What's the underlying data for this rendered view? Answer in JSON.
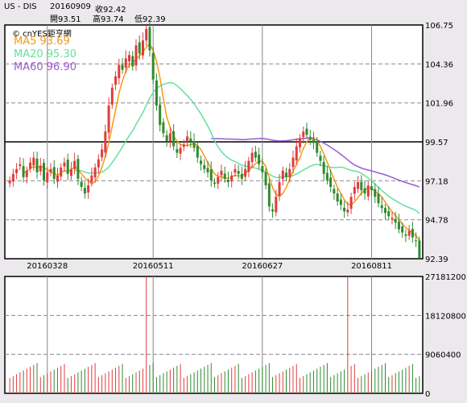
{
  "header": {
    "symbol": "US - DIS",
    "date": "20160909",
    "close_label": "收92.42",
    "open_label": "開93.51",
    "high_label": "高93.74",
    "low_label": "低92.39"
  },
  "source": {
    "label": "© cnYES鉅亨網"
  },
  "legend": [
    {
      "label": "MA5 93.69",
      "color": "#f59a14"
    },
    {
      "label": "MA20 95.30",
      "color": "#66e0a0"
    },
    {
      "label": "MA60 96.90",
      "color": "#9a5ad2"
    }
  ],
  "colors": {
    "up": "#e03c3c",
    "down": "#2f8a2f",
    "background": "#ffffff",
    "grid": "#888888"
  },
  "chart_data": [
    {
      "type": "candlestick",
      "ylim": [
        92.39,
        106.75
      ],
      "ytick_labels": [
        "106.75",
        "104.36",
        "101.96",
        "99.57",
        "97.18",
        "94.78",
        "92.39"
      ],
      "ytick_values": [
        106.75,
        104.36,
        101.96,
        99.57,
        97.18,
        94.78,
        92.39
      ],
      "xtick_labels": [
        "20160328",
        "20160511",
        "20160627",
        "20160811"
      ],
      "ma5_value": 93.69,
      "ma20_value": 95.3,
      "ma60_value": 96.9,
      "last_bar": {
        "date": "20160909",
        "open": 93.51,
        "high": 93.74,
        "low": 92.39,
        "close": 92.42
      },
      "close_series": [
        97.2,
        97.6,
        97.9,
        98.2,
        97.4,
        97.8,
        98.3,
        98.6,
        97.7,
        98.1,
        97.2,
        97.7,
        97.9,
        97.3,
        97.5,
        98.0,
        98.3,
        97.6,
        97.9,
        98.4,
        97.3,
        96.8,
        96.4,
        96.9,
        97.5,
        98.0,
        98.5,
        99.1,
        100.2,
        101.8,
        102.9,
        103.6,
        104.3,
        104.0,
        104.7,
        104.9,
        104.2,
        105.5,
        105.0,
        105.8,
        106.5,
        105.2,
        103.4,
        101.8,
        100.6,
        100.1,
        99.6,
        100.1,
        99.3,
        98.9,
        99.2,
        99.4,
        99.9,
        99.6,
        99.2,
        98.6,
        98.2,
        97.9,
        97.7,
        97.2,
        97.0,
        97.4,
        97.8,
        97.3,
        97.1,
        97.5,
        97.9,
        97.6,
        97.3,
        97.9,
        98.4,
        98.9,
        98.6,
        98.2,
        97.7,
        96.9,
        95.6,
        95.3,
        96.2,
        97.1,
        97.8,
        97.4,
        97.9,
        98.6,
        99.3,
        99.8,
        100.2,
        100.0,
        99.7,
        99.5,
        98.9,
        98.4,
        97.6,
        97.2,
        96.8,
        96.4,
        95.9,
        95.7,
        95.3,
        95.4,
        96.2,
        96.8,
        97.1,
        96.6,
        96.4,
        96.9,
        96.6,
        96.2,
        95.8,
        95.5,
        95.2,
        95.0,
        94.9,
        94.6,
        94.2,
        94.0,
        93.8,
        94.1,
        93.7,
        93.5,
        92.42
      ],
      "volume_ylim": [
        0,
        27181200
      ],
      "volume_tick_labels": [
        "27181200",
        "18120800",
        "9060400",
        "0"
      ],
      "volume_tick_values": [
        27181200,
        18120800,
        9060400,
        0
      ],
      "volume_spike_values": [
        27181200,
        27181200
      ],
      "volume_typical": 6500000
    }
  ]
}
